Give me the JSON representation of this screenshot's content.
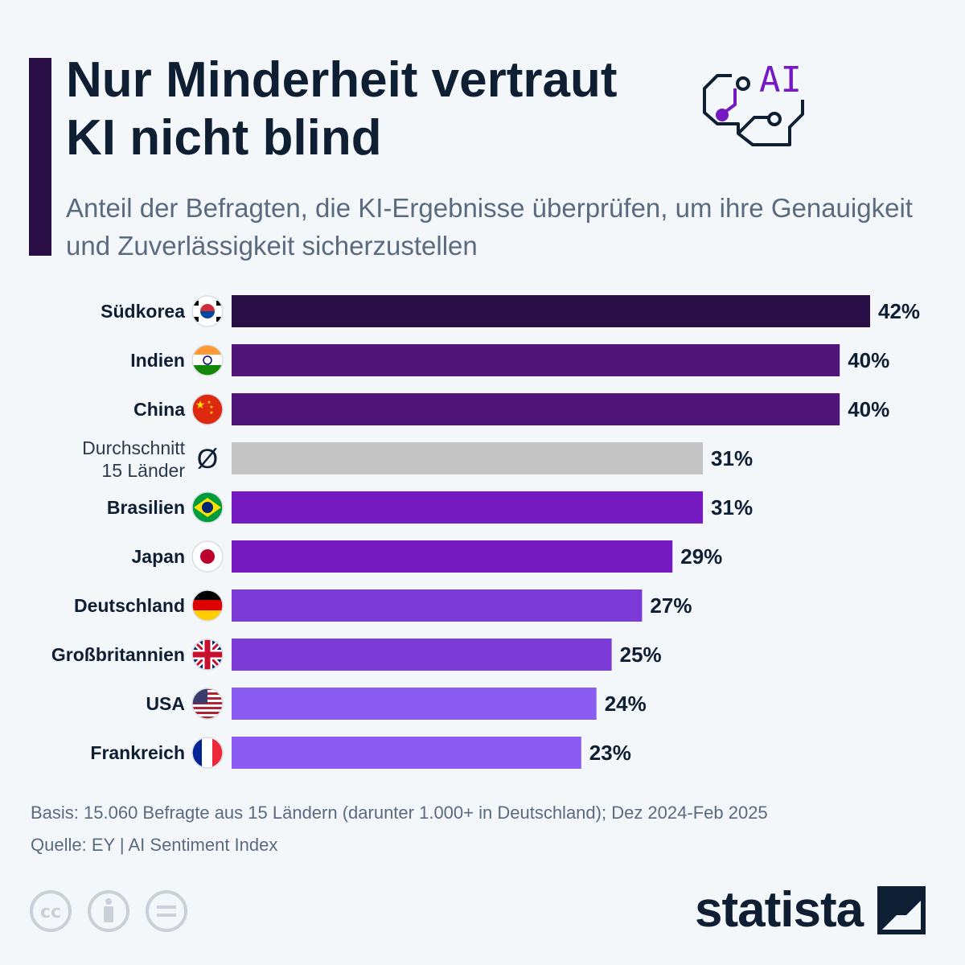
{
  "title": "Nur Minderheit vertraut KI nicht blind",
  "subtitle": "Anteil der Befragten, die KI-Ergebnisse überprüfen, um ihre Genauigkeit und Zuverlässigkeit sicherzustellen",
  "icon": {
    "name": "ai-chip-icon",
    "label": "AI"
  },
  "colors": {
    "title": "#0e1e33",
    "accent": "#2a0f47",
    "average": "#c4c4c4"
  },
  "chart_data": {
    "type": "bar",
    "orientation": "horizontal",
    "unit": "%",
    "xlim": [
      0,
      42
    ],
    "categories": [
      "Südkorea",
      "Indien",
      "China",
      "Durchschnitt 15 Länder",
      "Brasilien",
      "Japan",
      "Deutschland",
      "Großbritannien",
      "USA",
      "Frankreich"
    ],
    "label_lines": [
      [
        "Südkorea"
      ],
      [
        "Indien"
      ],
      [
        "China"
      ],
      [
        "Durchschnitt",
        "15 Länder"
      ],
      [
        "Brasilien"
      ],
      [
        "Japan"
      ],
      [
        "Deutschland"
      ],
      [
        "Großbritannien"
      ],
      [
        "USA"
      ],
      [
        "Frankreich"
      ]
    ],
    "values": [
      42,
      40,
      40,
      31,
      31,
      29,
      27,
      25,
      24,
      23
    ],
    "value_labels": [
      "42%",
      "40%",
      "40%",
      "31%",
      "31%",
      "29%",
      "27%",
      "25%",
      "24%",
      "23%"
    ],
    "markers": [
      "flag-south-korea",
      "flag-india",
      "flag-china",
      "average-symbol",
      "flag-brazil",
      "flag-japan",
      "flag-germany",
      "flag-uk",
      "flag-usa",
      "flag-france"
    ],
    "average_symbol": "Ø",
    "bar_colors": [
      "#2a0f47",
      "#4f1578",
      "#4f1578",
      "#c4c4c4",
      "#7519c0",
      "#7519c0",
      "#7c3ad6",
      "#7c3ad6",
      "#8a5cf2",
      "#8a5cf2"
    ]
  },
  "footer": {
    "basis": "Basis: 15.060 Befragte aus 15 Ländern (darunter 1.000+ in Deutschland); Dez 2024-Feb 2025",
    "source": "Quelle: EY | AI Sentiment Index"
  },
  "license_icons": [
    "cc-icon",
    "by-icon",
    "nd-icon"
  ],
  "logo": {
    "text": "statista"
  }
}
